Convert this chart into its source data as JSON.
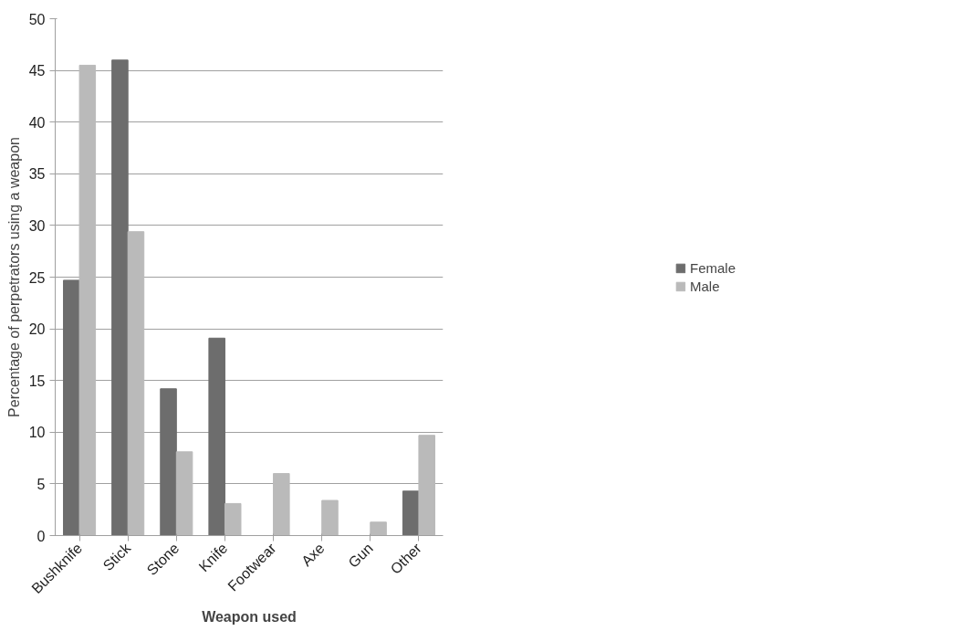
{
  "chart_data": {
    "type": "bar",
    "xlabel": "Weapon used",
    "ylabel": "Percentage of perpetrators using a weapon",
    "categories": [
      "Bushknife",
      "Stick",
      "Stone",
      "Knife",
      "Footwear",
      "Axe",
      "Gun",
      "Other"
    ],
    "series": [
      {
        "name": "Female",
        "color": "#6d6d6d",
        "values": [
          24.7,
          46.0,
          14.2,
          19.1,
          0,
          0,
          0,
          4.3
        ]
      },
      {
        "name": "Male",
        "color": "#bababa",
        "values": [
          45.5,
          29.4,
          8.1,
          3.1,
          6.0,
          3.4,
          1.3,
          9.7
        ]
      }
    ],
    "ylim": [
      0,
      50
    ],
    "yticks": [
      0,
      5,
      10,
      15,
      20,
      25,
      30,
      35,
      40,
      45,
      50
    ],
    "grid": "y",
    "legend": "right"
  }
}
